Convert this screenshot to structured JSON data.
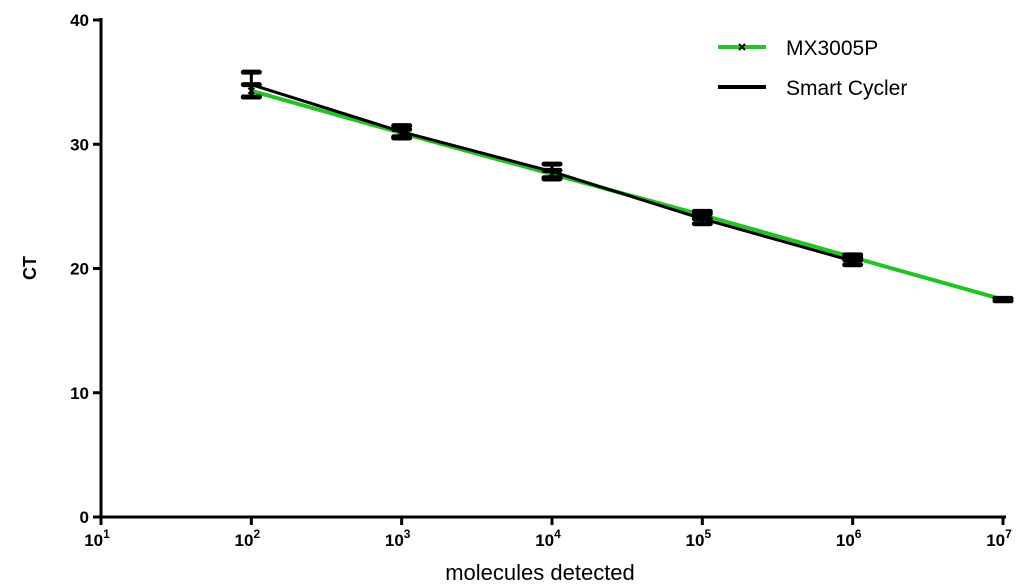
{
  "chart_data": {
    "type": "line",
    "title": "",
    "xlabel": "molecules detected",
    "ylabel": "CT",
    "x_scale": "log10",
    "xlim": [
      10,
      10000000
    ],
    "ylim": [
      0,
      40
    ],
    "x_tick_labels": [
      {
        "base": "10",
        "exp": "1"
      },
      {
        "base": "10",
        "exp": "2"
      },
      {
        "base": "10",
        "exp": "3"
      },
      {
        "base": "10",
        "exp": "4"
      },
      {
        "base": "10",
        "exp": "5"
      },
      {
        "base": "10",
        "exp": "6"
      },
      {
        "base": "10",
        "exp": "7"
      }
    ],
    "y_tick_labels": [
      "0",
      "10",
      "20",
      "30",
      "40"
    ],
    "legend": "top-right",
    "grid": false,
    "series": [
      {
        "name": "MX3005P",
        "color": "#22c322",
        "marker": "x",
        "x": [
          100,
          1000,
          10000,
          100000,
          1000000,
          10000000
        ],
        "y": [
          34.3,
          30.9,
          27.6,
          24.3,
          20.9,
          17.5
        ],
        "error": [
          0.5,
          0.3,
          0.3,
          0.3,
          0.2,
          0.1
        ]
      },
      {
        "name": "Smart Cycler",
        "color": "#000000",
        "marker": "dash",
        "x": [
          100,
          1000,
          10000,
          100000,
          1000000
        ],
        "y": [
          34.8,
          31.0,
          27.8,
          24.0,
          20.6
        ],
        "error": [
          1.0,
          0.5,
          0.6,
          0.4,
          0.3
        ]
      }
    ]
  }
}
